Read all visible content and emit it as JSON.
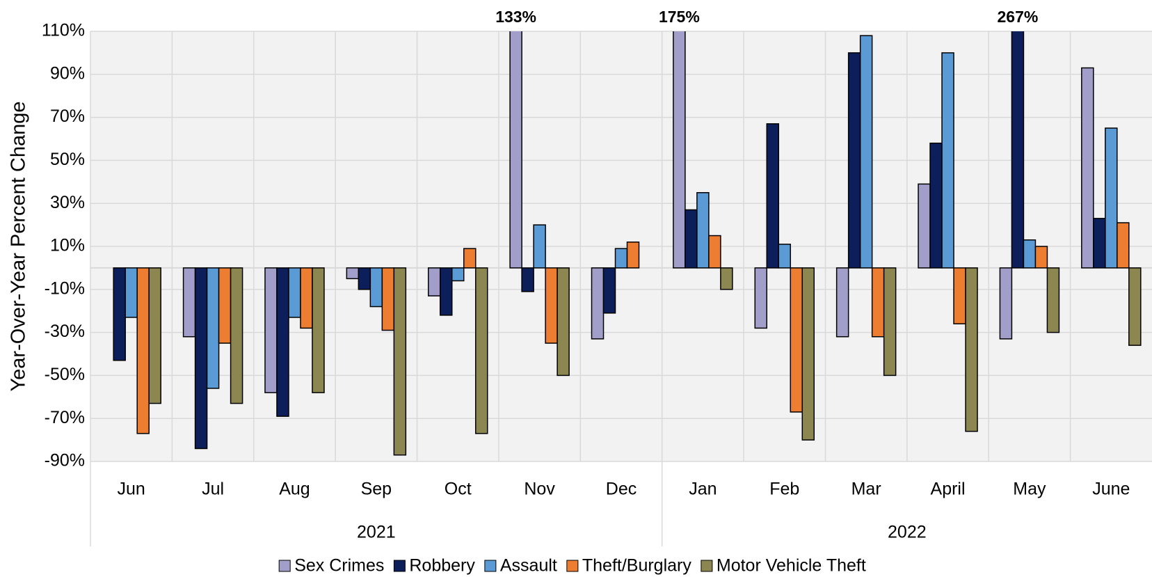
{
  "chart_data": {
    "type": "bar",
    "y_label": "Year-Over-Year Percent Change",
    "categories": [
      "Jun",
      "Jul",
      "Aug",
      "Sep",
      "Oct",
      "Nov",
      "Dec",
      "Jan",
      "Feb",
      "Mar",
      "April",
      "May",
      "June"
    ],
    "x_groups": [
      {
        "label": "2021",
        "categories": 7
      },
      {
        "label": "2022",
        "categories": 6
      }
    ],
    "series": [
      {
        "name": "Sex Crimes",
        "color": "#a19fc9",
        "values": [
          0,
          -32,
          -58,
          -5,
          -13,
          133,
          -33,
          175,
          -28,
          -32,
          39,
          -33,
          93
        ],
        "value_labels": [
          null,
          null,
          null,
          null,
          null,
          "133%",
          null,
          "175%",
          null,
          null,
          null,
          null,
          null
        ]
      },
      {
        "name": "Robbery",
        "color": "#0c1f5b",
        "values": [
          -43,
          -84,
          -69,
          -10,
          -22,
          -11,
          -21,
          27,
          67,
          100,
          58,
          267,
          23
        ],
        "value_labels": [
          null,
          null,
          null,
          null,
          null,
          null,
          null,
          null,
          null,
          null,
          null,
          "267%",
          null
        ]
      },
      {
        "name": "Assault",
        "color": "#5b9bd5",
        "values": [
          -23,
          -56,
          -23,
          -18,
          -6,
          20,
          9,
          35,
          11,
          108,
          100,
          13,
          65
        ]
      },
      {
        "name": "Theft/Burglary",
        "color": "#ed7d31",
        "values": [
          -77,
          -35,
          -28,
          -29,
          9,
          -35,
          12,
          15,
          -67,
          -32,
          -26,
          10,
          21
        ]
      },
      {
        "name": "Motor Vehicle Theft",
        "color": "#8c8651",
        "values": [
          -63,
          -63,
          -58,
          -87,
          -77,
          -50,
          0,
          -10,
          -80,
          -50,
          -76,
          -30,
          -36
        ]
      }
    ],
    "ylim": [
      -90,
      110
    ],
    "yticks": [
      {
        "value": -90,
        "label": "-90%"
      },
      {
        "value": -70,
        "label": "-70%"
      },
      {
        "value": -50,
        "label": "-50%"
      },
      {
        "value": -30,
        "label": "-30%"
      },
      {
        "value": -10,
        "label": "-10%"
      },
      {
        "value": 10,
        "label": "10%"
      },
      {
        "value": 30,
        "label": "30%"
      },
      {
        "value": 50,
        "label": "50%"
      },
      {
        "value": 70,
        "label": "70%"
      },
      {
        "value": 90,
        "label": "90%"
      },
      {
        "value": 110,
        "label": "110%"
      }
    ],
    "grid": true,
    "legend": "bottom"
  }
}
